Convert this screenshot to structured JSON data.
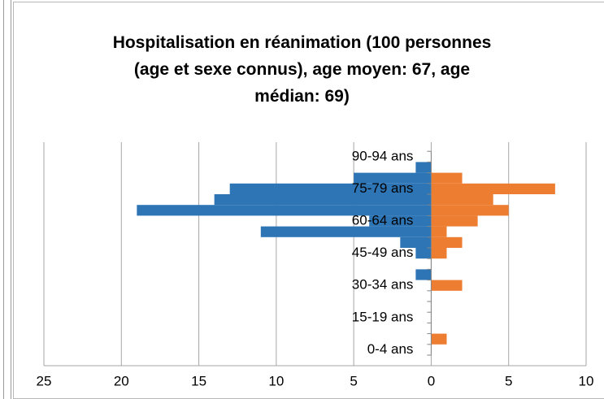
{
  "chart_data": {
    "type": "bar",
    "orientation": "horizontal",
    "title": "Hospitalisation en réanimation (100 personnes (age et sexe connus), age moyen: 67, age médian: 69)",
    "categories": [
      "0-4 ans",
      null,
      null,
      "15-19 ans",
      null,
      null,
      "30-34 ans",
      null,
      null,
      "45-49 ans",
      null,
      null,
      "60-64 ans",
      null,
      null,
      "75-79 ans",
      null,
      null,
      "90-94 ans"
    ],
    "series": [
      {
        "color": "#2e75b6",
        "values": [
          0,
          0,
          0,
          0,
          0,
          0,
          0,
          -1,
          0,
          -1,
          -2,
          -11,
          -4,
          -19,
          -14,
          -13,
          -5,
          -1,
          0
        ]
      },
      {
        "color": "#ed7d31",
        "values": [
          0,
          1,
          0,
          0,
          0,
          0,
          2,
          0,
          0,
          1,
          2,
          1,
          3,
          5,
          4,
          8,
          2,
          0,
          0
        ]
      }
    ],
    "xlim": [
      -25,
      10
    ],
    "xticks": [
      {
        "value": -25,
        "label": "25"
      },
      {
        "value": -20,
        "label": "20"
      },
      {
        "value": -15,
        "label": "15"
      },
      {
        "value": -10,
        "label": "10"
      },
      {
        "value": -5,
        "label": "5"
      },
      0,
      5,
      10
    ],
    "grid": true
  }
}
